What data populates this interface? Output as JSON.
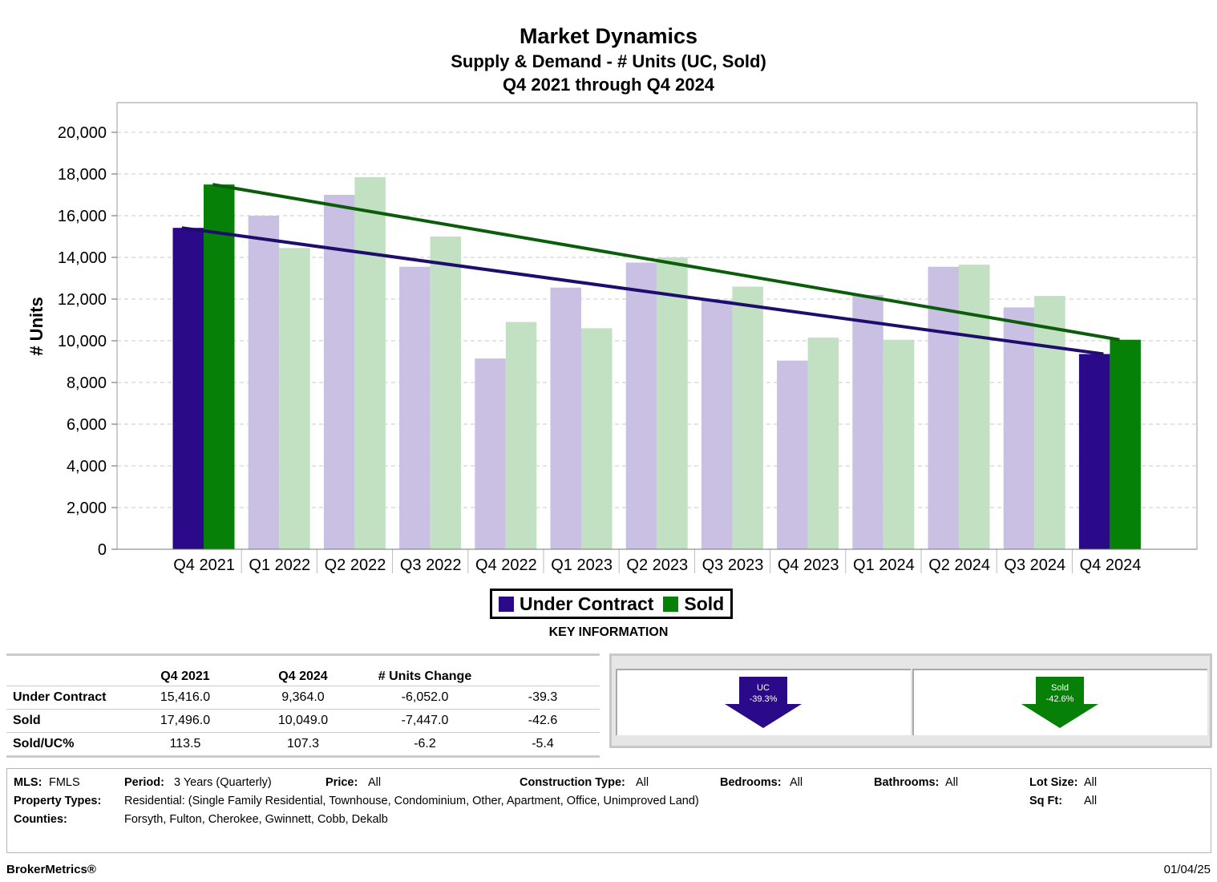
{
  "colors": {
    "uc_strong": "#2b0a8a",
    "sold_strong": "#068006",
    "uc_light": "#c9c0e3",
    "sold_light": "#c2e0c2",
    "uc_trend": "#1f0d6e",
    "sold_trend": "#0b5c0b"
  },
  "chart_data": {
    "type": "bar",
    "title": "Market Dynamics",
    "subtitle": "Supply & Demand - # Units (UC, Sold)",
    "subtitle2": "Q4 2021 through Q4 2024",
    "ylabel": "# Units",
    "ylim": [
      0,
      20000
    ],
    "yticks": [
      "0",
      "2,000",
      "4,000",
      "6,000",
      "8,000",
      "10,000",
      "12,000",
      "14,000",
      "16,000",
      "18,000",
      "20,000"
    ],
    "categories": [
      "Q4 2021",
      "Q1 2022",
      "Q2 2022",
      "Q3 2022",
      "Q4 2022",
      "Q1 2023",
      "Q2 2023",
      "Q3 2023",
      "Q4 2023",
      "Q1 2024",
      "Q2 2024",
      "Q3 2024",
      "Q4 2024"
    ],
    "series": [
      {
        "name": "Under Contract",
        "values": [
          15416,
          16000,
          17000,
          13550,
          9150,
          12550,
          13750,
          11950,
          9050,
          12200,
          13550,
          11600,
          9364
        ]
      },
      {
        "name": "Sold",
        "values": [
          17496,
          14450,
          17850,
          15000,
          10900,
          10600,
          14000,
          12600,
          10150,
          10050,
          13650,
          12150,
          10049
        ]
      }
    ],
    "trendlines": [
      {
        "series": "Under Contract",
        "start": 15416,
        "end": 9364
      },
      {
        "series": "Sold",
        "start": 17496,
        "end": 10049
      }
    ],
    "grid": true,
    "legend": "bottom-center"
  },
  "key_info": {
    "heading": "KEY INFORMATION",
    "headers": [
      "",
      "Q4 2021",
      "Q4 2024",
      "# Units Change",
      ""
    ],
    "rows": [
      {
        "label": "Under Contract",
        "start": "15,416.0",
        "end": "9,364.0",
        "change": "-6,052.0",
        "pct": "-39.3"
      },
      {
        "label": "Sold",
        "start": "17,496.0",
        "end": "10,049.0",
        "change": "-7,447.0",
        "pct": "-42.6"
      },
      {
        "label": "Sold/UC%",
        "start": "113.5",
        "end": "107.3",
        "change": "-6.2",
        "pct": "-5.4"
      }
    ],
    "arrows": [
      {
        "label": "UC",
        "value": "-39.3%"
      },
      {
        "label": "Sold",
        "value": "-42.6%"
      }
    ]
  },
  "filters": {
    "mls_label": "MLS:",
    "mls": "FMLS",
    "period_label": "Period:",
    "period": "3 Years (Quarterly)",
    "price_label": "Price:",
    "price": "All",
    "construction_label": "Construction Type:",
    "construction": "All",
    "bedrooms_label": "Bedrooms:",
    "bedrooms": "All",
    "bathrooms_label": "Bathrooms:",
    "bathrooms": "All",
    "lot_label": "Lot Size:",
    "lot": "All",
    "ptypes_label": "Property Types:",
    "ptypes": "Residential: (Single Family Residential, Townhouse, Condominium, Other, Apartment, Office, Unimproved Land)",
    "sqft_label": "Sq Ft:",
    "sqft": "All",
    "counties_label": "Counties:",
    "counties": "Forsyth, Fulton, Cherokee, Gwinnett, Cobb, Dekalb"
  },
  "footer": {
    "brand": "BrokerMetrics®",
    "date": "01/04/25"
  }
}
